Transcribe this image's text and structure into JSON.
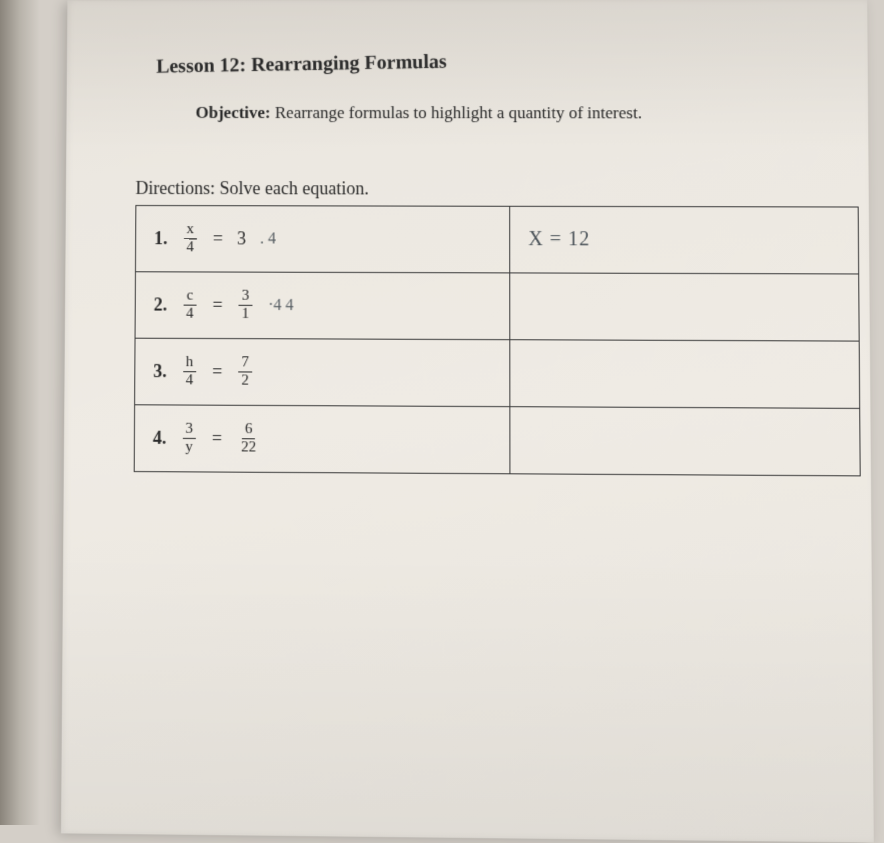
{
  "lesson": {
    "title": "Lesson 12: Rearranging Formulas",
    "objective_label": "Objective:",
    "objective_text": "Rearrange formulas to highlight a quantity of interest.",
    "directions": "Directions:  Solve each equation."
  },
  "problems": [
    {
      "number": "1.",
      "frac_top": "x",
      "frac_bot": "4",
      "eq": "=",
      "rhs": "3",
      "handwritten_extra": ". 4",
      "answer": "X = 12"
    },
    {
      "number": "2.",
      "frac_top": "c",
      "frac_bot": "4",
      "eq": "=",
      "rhs_frac_top": "3",
      "rhs_frac_bot": "1",
      "handwritten_extra": "·4  4",
      "answer": ""
    },
    {
      "number": "3.",
      "frac_top": "h",
      "frac_bot": "4",
      "eq": "=",
      "rhs_frac_top": "7",
      "rhs_frac_bot": "2",
      "answer": ""
    },
    {
      "number": "4.",
      "frac_top": "3",
      "frac_bot": "y",
      "eq": "=",
      "rhs_frac_top": "6",
      "rhs_frac_bot": "22",
      "answer": ""
    }
  ]
}
